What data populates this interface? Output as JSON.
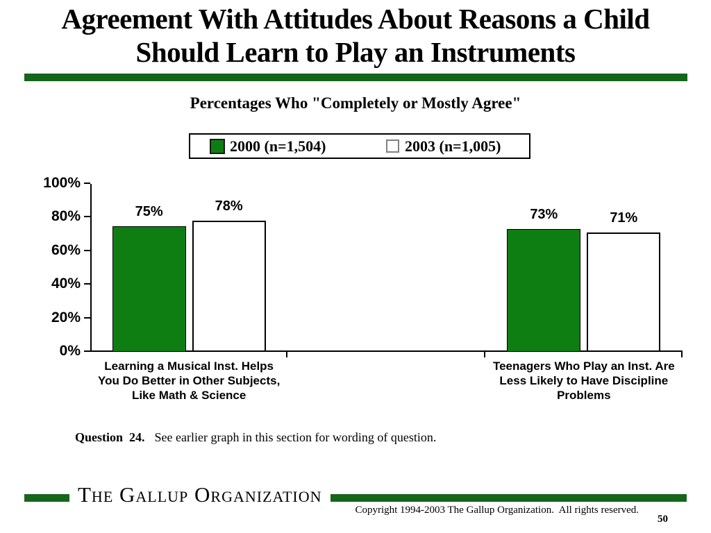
{
  "slide": {
    "title_line1": "Agreement With Attitudes About Reasons a Child",
    "title_line2": "Should Learn to Play an Instruments",
    "question_label": "Question  24.",
    "question_text": "See earlier graph in this section for wording of question.",
    "footer_logo": "The Gallup Organization",
    "copyright": "Copyright 1994-2003 The Gallup Organization.  All rights reserved.",
    "page_number": "50"
  },
  "colors": {
    "bar_green": "#0e7e12",
    "rule_green": "#15651a",
    "axis": "#000000",
    "white_bar": "#ffffff",
    "white_swatch_border": "#808080"
  },
  "chart_data": {
    "type": "bar",
    "title": "Percentages Who \"Completely or Mostly Agree\"",
    "categories": [
      {
        "lines": [
          "Learning a Musical Inst. Helps",
          "You Do Better in Other Subjects,",
          "Like Math & Science"
        ]
      },
      {
        "lines": [
          "Teenagers Who Play an Inst. Are",
          "Less Likely to Have Discipline",
          "Problems"
        ]
      }
    ],
    "series": [
      {
        "name": "2000 (n=1,504)",
        "values": [
          75,
          73
        ],
        "style": "green-filled"
      },
      {
        "name": "2003 (n=1,005)",
        "values": [
          78,
          71
        ],
        "style": "white-outlined"
      }
    ],
    "value_label_suffix": "%",
    "yticks": [
      "0%",
      "20%",
      "40%",
      "60%",
      "80%",
      "100%"
    ],
    "ylim": [
      0,
      100
    ],
    "ytick_step": 20,
    "grid": false,
    "legend_position": "top-center",
    "xlabel": "",
    "ylabel": ""
  }
}
